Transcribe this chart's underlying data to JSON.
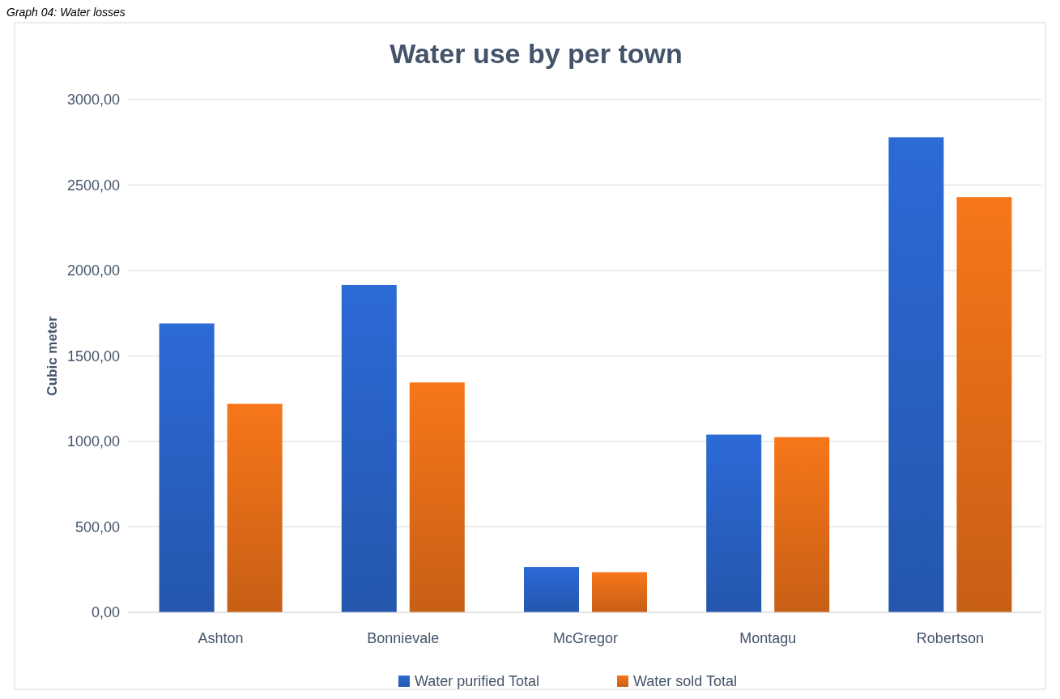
{
  "chart_data": {
    "type": "bar",
    "title": "Water use by per town",
    "ylabel": "Cubic meter",
    "annotations": [
      "Graph 04: Water losses"
    ],
    "categories": [
      "Ashton",
      "Bonnievale",
      "McGregor",
      "Montagu",
      "Robertson"
    ],
    "series": [
      {
        "name": "Water purified Total",
        "color": "#2c6ad6",
        "values": [
          1690,
          1915,
          265,
          1040,
          2780
        ]
      },
      {
        "name": "Water sold Total",
        "color": "#f7761a",
        "values": [
          1220,
          1345,
          235,
          1025,
          2430
        ]
      }
    ],
    "ylim": [
      0,
      3000
    ],
    "yticks": [
      {
        "value": 0,
        "label": "0,00"
      },
      {
        "value": 500,
        "label": "500,00"
      },
      {
        "value": 1000,
        "label": "1000,00"
      },
      {
        "value": 1500,
        "label": "1500,00"
      },
      {
        "value": 2000,
        "label": "2000,00"
      },
      {
        "value": 2500,
        "label": "2500,00"
      },
      {
        "value": 3000,
        "label": "3000,00"
      }
    ],
    "grid": "y",
    "legend": "bottom"
  }
}
